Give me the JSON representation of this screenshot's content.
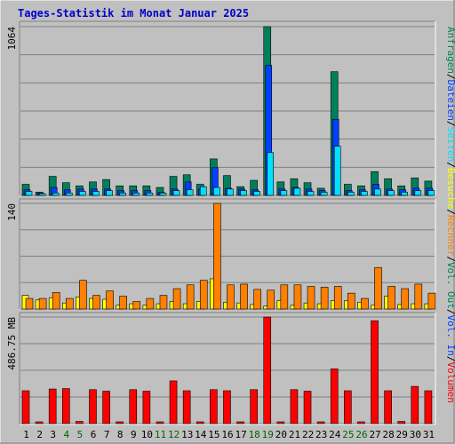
{
  "chart_data": {
    "type": "bar",
    "title": "Tages-Statistik im Monat Januar 2025",
    "categories": [
      "1",
      "2",
      "3",
      "4",
      "5",
      "6",
      "7",
      "8",
      "9",
      "10",
      "11",
      "12",
      "13",
      "14",
      "15",
      "16",
      "17",
      "18",
      "19",
      "20",
      "21",
      "22",
      "23",
      "24",
      "25",
      "26",
      "27",
      "28",
      "29",
      "30",
      "31"
    ],
    "weekend_days": [
      "4",
      "5",
      "11",
      "12",
      "18",
      "19",
      "25",
      "26"
    ],
    "panels": [
      {
        "name": "hits-files-pages",
        "ymax_label": "1064",
        "ymax": 1064,
        "series": [
          {
            "name": "Anfragen",
            "color": "#00805a",
            "values": [
              70,
              20,
              120,
              80,
              60,
              85,
              100,
              60,
              60,
              60,
              50,
              120,
              130,
              70,
              230,
              125,
              55,
              95,
              1064,
              85,
              105,
              80,
              45,
              780,
              70,
              60,
              150,
              105,
              60,
              110,
              90
            ]
          },
          {
            "name": "Dateien",
            "color": "#0040ff",
            "values": [
              35,
              15,
              50,
              35,
              40,
              40,
              40,
              30,
              30,
              30,
              20,
              40,
              85,
              40,
              175,
              45,
              40,
              35,
              820,
              40,
              50,
              40,
              30,
              480,
              30,
              35,
              70,
              40,
              35,
              45,
              45
            ]
          },
          {
            "name": "Seiten",
            "color": "#00e0ff",
            "values": [
              25,
              10,
              15,
              15,
              25,
              25,
              30,
              15,
              15,
              15,
              15,
              30,
              35,
              55,
              50,
              40,
              30,
              25,
              270,
              30,
              45,
              25,
              20,
              310,
              20,
              25,
              40,
              30,
              20,
              30,
              30
            ]
          }
        ]
      },
      {
        "name": "visits-sites",
        "ymax_label": "140",
        "ymax": 140,
        "series": [
          {
            "name": "Besuche",
            "color": "#ffff00",
            "values": [
              18,
              12,
              15,
              8,
              16,
              14,
              13,
              5,
              7,
              5,
              7,
              10,
              7,
              10,
              40,
              9,
              8,
              6,
              4,
              11,
              5,
              8,
              7,
              11,
              11,
              9,
              5,
              17,
              6,
              7,
              7
            ]
          },
          {
            "name": "Rechner",
            "color": "#ff8000",
            "values": [
              14,
              14,
              22,
              14,
              38,
              18,
              24,
              17,
              10,
              14,
              18,
              27,
              32,
              38,
              140,
              32,
              33,
              26,
              25,
              32,
              32,
              30,
              29,
              30,
              21,
              14,
              55,
              30,
              27,
              33,
              21
            ]
          }
        ]
      },
      {
        "name": "volume",
        "ymax_label": "486.75 MB",
        "ymax": 486.75,
        "series": [
          {
            "name": "Vol. In",
            "color": "#0040ff",
            "values": [
              0,
              0,
              0,
              0,
              0,
              0,
              0,
              0,
              0,
              0,
              0,
              0,
              0,
              0,
              0,
              0,
              0,
              0,
              0,
              0,
              0,
              0,
              0,
              0,
              0,
              0,
              0,
              0,
              0,
              0,
              0
            ]
          },
          {
            "name": "Vol. Out",
            "color": "#00805a",
            "values": [
              0,
              0,
              0,
              0,
              0,
              0,
              0,
              0,
              0,
              0,
              0,
              0,
              0,
              0,
              0,
              0,
              0,
              0,
              0,
              0,
              0,
              0,
              0,
              0,
              0,
              0,
              0,
              0,
              0,
              0,
              0
            ]
          },
          {
            "name": "Volumen",
            "color": "#ff0000",
            "values": [
              150,
              8,
              158,
              160,
              10,
              155,
              148,
              8,
              155,
              148,
              8,
              195,
              150,
              8,
              155,
              150,
              8,
              155,
              486.75,
              8,
              155,
              148,
              8,
              250,
              150,
              8,
              470,
              150,
              10,
              170,
              150
            ]
          }
        ]
      }
    ],
    "right_labels": {
      "top": [
        {
          "text": "Anfragen",
          "color": "#00805a"
        },
        {
          "text": "/",
          "color": "#000000"
        },
        {
          "text": "Dateien",
          "color": "#0040ff"
        },
        {
          "text": "/",
          "color": "#000000"
        },
        {
          "text": "Seiten",
          "color": "#00e0ff"
        },
        {
          "text": "/",
          "color": "#000000"
        },
        {
          "text": "Besuche",
          "color": "#ffff00"
        },
        {
          "text": "/",
          "color": "#000000"
        },
        {
          "text": "Rechner",
          "color": "#ff8000"
        },
        {
          "text": "/",
          "color": "#000000"
        },
        {
          "text": "Vol. Out",
          "color": "#00805a"
        },
        {
          "text": "/",
          "color": "#000000"
        },
        {
          "text": "Vol. In",
          "color": "#0040ff"
        },
        {
          "text": "/",
          "color": "#000000"
        },
        {
          "text": "Volumen",
          "color": "#ff0000"
        }
      ]
    }
  }
}
